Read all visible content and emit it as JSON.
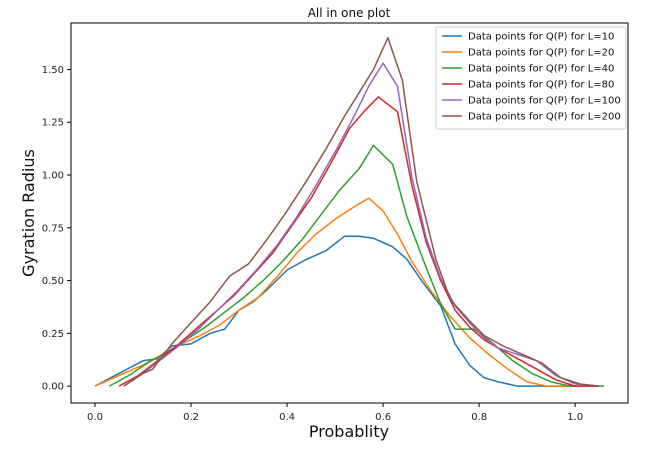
{
  "chart_data": {
    "type": "line",
    "title": "All in one plot",
    "xlabel": "Probablity",
    "ylabel": "Gyration Radius",
    "xlim": [
      -0.05,
      1.11
    ],
    "ylim": [
      -0.08,
      1.72
    ],
    "xticks": [
      0.0,
      0.2,
      0.4,
      0.6,
      0.8,
      1.0
    ],
    "xtick_labels": [
      "0.0",
      "0.2",
      "0.4",
      "0.6",
      "0.8",
      "1.0"
    ],
    "yticks": [
      0.0,
      0.25,
      0.5,
      0.75,
      1.0,
      1.25,
      1.5
    ],
    "ytick_labels": [
      "0.00",
      "0.25",
      "0.50",
      "0.75",
      "1.00",
      "1.25",
      "1.50"
    ],
    "grid": false,
    "legend_position": "top-right",
    "series": [
      {
        "name": "Data points for Q(P) for L=10",
        "color": "#1f77b4",
        "x": [
          0.0,
          0.05,
          0.1,
          0.13,
          0.16,
          0.2,
          0.24,
          0.27,
          0.3,
          0.33,
          0.36,
          0.4,
          0.44,
          0.48,
          0.52,
          0.55,
          0.58,
          0.62,
          0.65,
          0.68,
          0.72,
          0.75,
          0.78,
          0.81,
          0.84,
          0.88,
          0.92,
          0.96,
          1.0
        ],
        "values": [
          0.0,
          0.06,
          0.12,
          0.13,
          0.19,
          0.2,
          0.25,
          0.27,
          0.36,
          0.4,
          0.46,
          0.55,
          0.6,
          0.64,
          0.71,
          0.71,
          0.7,
          0.66,
          0.6,
          0.5,
          0.38,
          0.2,
          0.1,
          0.04,
          0.02,
          0.0,
          0.0,
          0.0,
          0.0
        ]
      },
      {
        "name": "Data points for Q(P) for L=20",
        "color": "#ff7f0e",
        "x": [
          0.0,
          0.06,
          0.1,
          0.14,
          0.18,
          0.22,
          0.26,
          0.3,
          0.34,
          0.38,
          0.42,
          0.46,
          0.5,
          0.54,
          0.57,
          0.6,
          0.63,
          0.66,
          0.7,
          0.74,
          0.78,
          0.82,
          0.86,
          0.9,
          0.94,
          0.98,
          1.02,
          1.05
        ],
        "values": [
          0.0,
          0.06,
          0.1,
          0.15,
          0.2,
          0.24,
          0.29,
          0.36,
          0.42,
          0.52,
          0.63,
          0.72,
          0.79,
          0.85,
          0.89,
          0.83,
          0.72,
          0.59,
          0.45,
          0.33,
          0.23,
          0.15,
          0.08,
          0.02,
          0.0,
          0.0,
          0.0,
          0.0
        ]
      },
      {
        "name": "Data points for Q(P) for L=40",
        "color": "#2ca02c",
        "x": [
          0.03,
          0.07,
          0.11,
          0.15,
          0.19,
          0.23,
          0.27,
          0.31,
          0.35,
          0.39,
          0.43,
          0.47,
          0.51,
          0.55,
          0.58,
          0.62,
          0.65,
          0.69,
          0.72,
          0.75,
          0.79,
          0.83,
          0.87,
          0.91,
          0.95,
          0.99,
          1.03,
          1.06
        ],
        "values": [
          0.0,
          0.05,
          0.11,
          0.16,
          0.22,
          0.28,
          0.35,
          0.42,
          0.5,
          0.59,
          0.69,
          0.81,
          0.93,
          1.03,
          1.14,
          1.05,
          0.8,
          0.56,
          0.39,
          0.27,
          0.27,
          0.2,
          0.12,
          0.06,
          0.02,
          0.0,
          0.0,
          0.0
        ]
      },
      {
        "name": "Data points for Q(P) for L=80",
        "color": "#d62728",
        "x": [
          0.05,
          0.09,
          0.13,
          0.17,
          0.21,
          0.25,
          0.29,
          0.33,
          0.37,
          0.41,
          0.45,
          0.49,
          0.53,
          0.56,
          0.59,
          0.63,
          0.66,
          0.69,
          0.72,
          0.75,
          0.78,
          0.81,
          0.84,
          0.88,
          0.92,
          0.96,
          1.0,
          1.05
        ],
        "values": [
          0.0,
          0.05,
          0.12,
          0.19,
          0.27,
          0.35,
          0.43,
          0.53,
          0.63,
          0.76,
          0.89,
          1.05,
          1.22,
          1.3,
          1.37,
          1.3,
          0.95,
          0.68,
          0.5,
          0.36,
          0.28,
          0.22,
          0.18,
          0.13,
          0.08,
          0.03,
          0.0,
          0.0
        ]
      },
      {
        "name": "Data points for Q(P) for L=100",
        "color": "#9467bd",
        "x": [
          0.06,
          0.1,
          0.14,
          0.18,
          0.22,
          0.26,
          0.3,
          0.34,
          0.38,
          0.42,
          0.46,
          0.5,
          0.54,
          0.57,
          0.6,
          0.63,
          0.66,
          0.69,
          0.72,
          0.75,
          0.78,
          0.81,
          0.84,
          0.88,
          0.92,
          0.96,
          1.0,
          1.05
        ],
        "values": [
          0.0,
          0.06,
          0.13,
          0.2,
          0.28,
          0.37,
          0.46,
          0.56,
          0.67,
          0.8,
          0.95,
          1.11,
          1.28,
          1.42,
          1.53,
          1.42,
          0.99,
          0.7,
          0.51,
          0.38,
          0.3,
          0.23,
          0.18,
          0.15,
          0.12,
          0.05,
          0.01,
          0.0
        ]
      },
      {
        "name": "Data points for Q(P) for L=200",
        "color": "#8c564b",
        "x": [
          0.06,
          0.1,
          0.12,
          0.16,
          0.2,
          0.24,
          0.28,
          0.32,
          0.36,
          0.4,
          0.44,
          0.48,
          0.52,
          0.55,
          0.58,
          0.61,
          0.64,
          0.67,
          0.71,
          0.74,
          0.78,
          0.81,
          0.85,
          0.89,
          0.93,
          0.97,
          1.01,
          1.05
        ],
        "values": [
          0.0,
          0.06,
          0.08,
          0.2,
          0.3,
          0.4,
          0.52,
          0.58,
          0.7,
          0.83,
          0.97,
          1.12,
          1.28,
          1.39,
          1.5,
          1.65,
          1.45,
          0.97,
          0.6,
          0.41,
          0.31,
          0.24,
          0.19,
          0.15,
          0.11,
          0.04,
          0.01,
          0.0
        ]
      }
    ]
  }
}
